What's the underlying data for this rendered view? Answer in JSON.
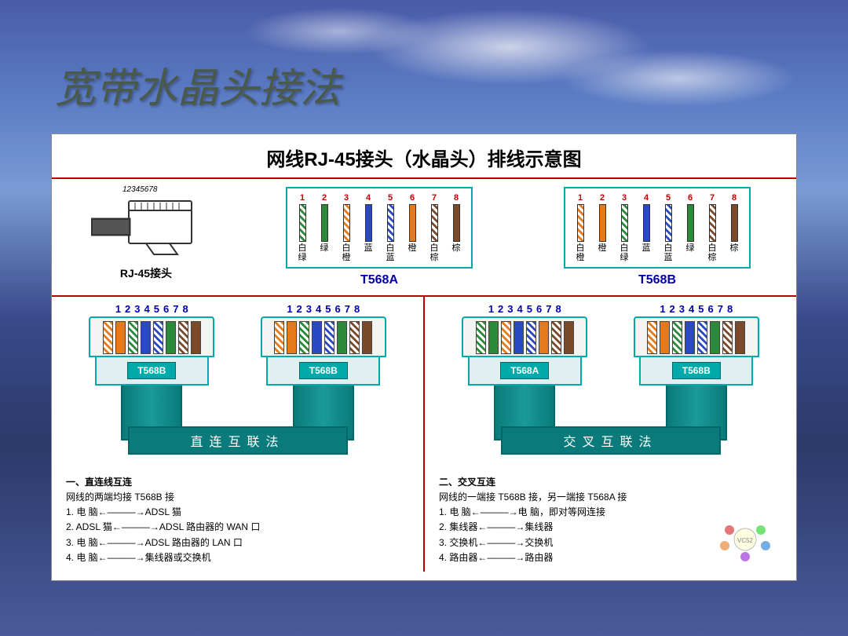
{
  "slide_title": "宽带水晶头接法",
  "diagram_title": "网线RJ-45接头（水晶头）排线示意图",
  "rj45": {
    "nums": "12345678",
    "label": "RJ-45接头"
  },
  "standards": {
    "t568a": {
      "label": "T568A",
      "pins": [
        {
          "n": "1",
          "name": "白绿",
          "color": "#2a8a3a",
          "striped": true
        },
        {
          "n": "2",
          "name": "绿",
          "color": "#2a8a3a",
          "striped": false
        },
        {
          "n": "3",
          "name": "白橙",
          "color": "#e67a1a",
          "striped": true
        },
        {
          "n": "4",
          "name": "蓝",
          "color": "#2a4ac4",
          "striped": false
        },
        {
          "n": "5",
          "name": "白蓝",
          "color": "#2a4ac4",
          "striped": true
        },
        {
          "n": "6",
          "name": "橙",
          "color": "#e67a1a",
          "striped": false
        },
        {
          "n": "7",
          "name": "白棕",
          "color": "#7a4a2a",
          "striped": true
        },
        {
          "n": "8",
          "name": "棕",
          "color": "#7a4a2a",
          "striped": false
        }
      ]
    },
    "t568b": {
      "label": "T568B",
      "pins": [
        {
          "n": "1",
          "name": "白橙",
          "color": "#e67a1a",
          "striped": true
        },
        {
          "n": "2",
          "name": "橙",
          "color": "#e67a1a",
          "striped": false
        },
        {
          "n": "3",
          "name": "白绿",
          "color": "#2a8a3a",
          "striped": true
        },
        {
          "n": "4",
          "name": "蓝",
          "color": "#2a4ac4",
          "striped": false
        },
        {
          "n": "5",
          "name": "白蓝",
          "color": "#2a4ac4",
          "striped": true
        },
        {
          "n": "6",
          "name": "绿",
          "color": "#2a8a3a",
          "striped": false
        },
        {
          "n": "7",
          "name": "白棕",
          "color": "#7a4a2a",
          "striped": true
        },
        {
          "n": "8",
          "name": "棕",
          "color": "#7a4a2a",
          "striped": false
        }
      ]
    }
  },
  "methods": {
    "straight": {
      "title": "直连互联法",
      "left_badge": "T568B",
      "right_badge": "T568B",
      "left_std": "t568b",
      "right_std": "t568b",
      "desc_title": "一、直连线互连",
      "desc_sub": "网线的两端均接 T568B 接",
      "lines": [
        "1.  电    脑←———→ADSL 猫",
        "2.  ADSL 猫←———→ADSL 路由器的 WAN 口",
        "3.  电    脑←———→ADSL 路由器的 LAN 口",
        "4.  电    脑←———→集线器或交换机"
      ]
    },
    "crossover": {
      "title": "交叉互联法",
      "left_badge": "T568A",
      "right_badge": "T568B",
      "left_std": "t568a",
      "right_std": "t568b",
      "desc_title": "二、交叉互连",
      "desc_sub": "网线的一端接 T568B 接，另一端接 T568A 接",
      "lines": [
        "1.  电    脑←———→电    脑，即对等网连接",
        "2.  集线器←———→集线器",
        "3.  交换机←———→交换机",
        "4.  路由器←———→路由器"
      ]
    }
  },
  "colors": {
    "border_red": "#b00000",
    "border_teal": "#0aa0a0",
    "cable_teal": "#0a7a7a",
    "title_text": "#4a5a4a"
  }
}
